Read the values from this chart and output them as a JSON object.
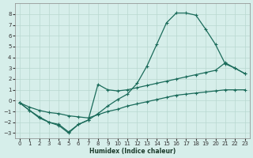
{
  "xlabel": "Humidex (Indice chaleur)",
  "bg_color": "#d6eeea",
  "grid_color": "#b8d8d0",
  "line_color": "#1a6b5a",
  "xlim": [
    -0.5,
    23.5
  ],
  "ylim": [
    -3.5,
    9.0
  ],
  "xticks": [
    0,
    1,
    2,
    3,
    4,
    5,
    6,
    7,
    8,
    9,
    10,
    11,
    12,
    13,
    14,
    15,
    16,
    17,
    18,
    19,
    20,
    21,
    22,
    23
  ],
  "yticks": [
    -3,
    -2,
    -1,
    0,
    1,
    2,
    3,
    4,
    5,
    6,
    7,
    8
  ],
  "line1_x": [
    0,
    1,
    2,
    3,
    4,
    5,
    6,
    7,
    8,
    9,
    10,
    11,
    12,
    13,
    14,
    15,
    16,
    17,
    18,
    19,
    20,
    21,
    22,
    23
  ],
  "line1_y": [
    -0.2,
    -0.9,
    -1.5,
    -2.0,
    -2.2,
    -2.9,
    -2.2,
    -1.8,
    -1.2,
    -0.5,
    0.1,
    0.6,
    1.6,
    3.2,
    5.2,
    7.2,
    8.1,
    8.1,
    7.9,
    6.6,
    5.2,
    3.4,
    3.0,
    2.5
  ],
  "line2_x": [
    0,
    1,
    2,
    3,
    4,
    5,
    6,
    7,
    8,
    9,
    10,
    11,
    12,
    13,
    14,
    15,
    16,
    17,
    18,
    19,
    20,
    21,
    22,
    23
  ],
  "line2_y": [
    -0.2,
    -0.9,
    -1.6,
    -2.0,
    -2.3,
    -3.0,
    -2.2,
    -1.8,
    1.5,
    1.0,
    0.9,
    1.0,
    1.2,
    1.4,
    1.6,
    1.8,
    2.0,
    2.2,
    2.4,
    2.6,
    2.8,
    3.5,
    3.0,
    2.5
  ],
  "line3_x": [
    0,
    1,
    2,
    3,
    4,
    5,
    6,
    7,
    8,
    9,
    10,
    11,
    12,
    13,
    14,
    15,
    16,
    17,
    18,
    19,
    20,
    21,
    22,
    23
  ],
  "line3_y": [
    -0.2,
    -0.6,
    -0.9,
    -1.1,
    -1.2,
    -1.4,
    -1.5,
    -1.6,
    -1.3,
    -1.0,
    -0.8,
    -0.5,
    -0.3,
    -0.1,
    0.1,
    0.3,
    0.5,
    0.6,
    0.7,
    0.8,
    0.9,
    1.0,
    1.0,
    1.0
  ]
}
